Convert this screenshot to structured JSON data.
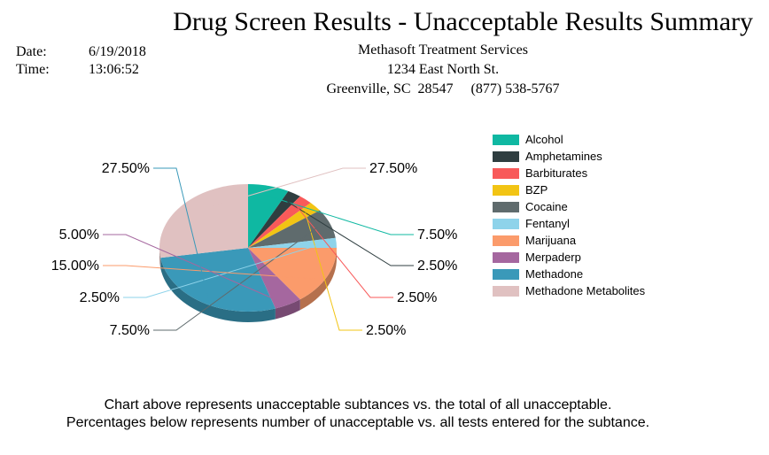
{
  "report": {
    "title": "Drug Screen Results - Unacceptable Results Summary",
    "date_label": "Date:",
    "date_value": "6/19/2018",
    "time_label": "Time:",
    "time_value": "13:06:52",
    "company_name": "Methasoft Treatment Services",
    "company_address": "1234 East North St.",
    "company_city_phone": "Greenville, SC  28547     (877) 538-5767"
  },
  "chart_data": {
    "type": "pie",
    "title": "",
    "slices": [
      {
        "label": "Alcohol",
        "value": 7.5,
        "display": "7.50%",
        "color": "#0fb8a2"
      },
      {
        "label": "Amphetamines",
        "value": 2.5,
        "display": "2.50%",
        "color": "#2f3e40"
      },
      {
        "label": "Barbiturates",
        "value": 2.5,
        "display": "2.50%",
        "color": "#f85a5a"
      },
      {
        "label": "BZP",
        "value": 2.5,
        "display": "2.50%",
        "color": "#f2c414"
      },
      {
        "label": "Cocaine",
        "value": 7.5,
        "display": "7.50%",
        "color": "#5f6b6d"
      },
      {
        "label": "Fentanyl",
        "value": 2.5,
        "display": "2.50%",
        "color": "#8ed3ea"
      },
      {
        "label": "Marijuana",
        "value": 15.0,
        "display": "15.00%",
        "color": "#fb9b6b"
      },
      {
        "label": "Merpaderp",
        "value": 5.0,
        "display": "5.00%",
        "color": "#a5679f"
      },
      {
        "label": "Methadone",
        "value": 27.5,
        "display": "27.50%",
        "color": "#3a99b9"
      },
      {
        "label": "Methadone Metabolites",
        "value": 27.5,
        "display": "27.50%",
        "color": "#e0c1c1"
      }
    ],
    "legend_position": "right"
  },
  "footnotes": {
    "line1": "Chart above represents unacceptable subtances vs. the total of all unacceptable.",
    "line2": "Percentages below represents number of unacceptable vs. all tests entered for the subtance."
  }
}
